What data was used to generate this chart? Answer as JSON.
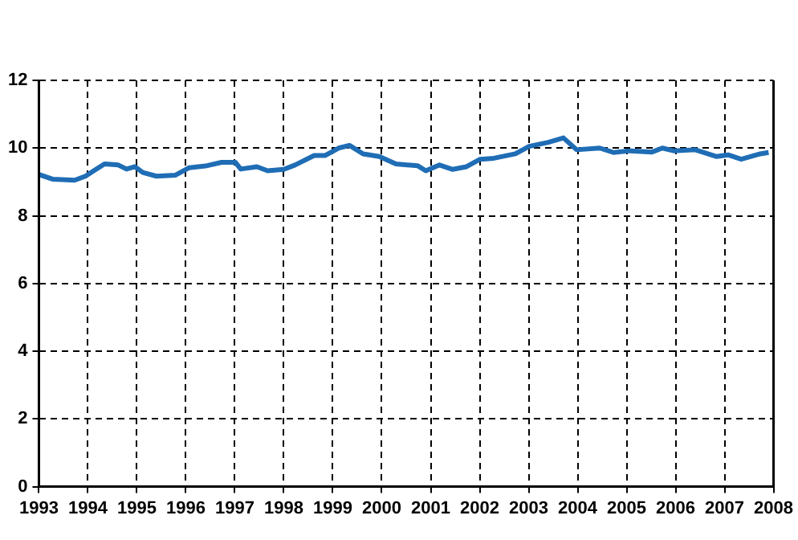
{
  "chart_data": {
    "type": "line",
    "xlim": [
      1993,
      2008
    ],
    "xticks": [
      1993,
      1994,
      1995,
      1996,
      1997,
      1998,
      1999,
      2000,
      2001,
      2002,
      2003,
      2004,
      2005,
      2006,
      2007,
      2008
    ],
    "ylim": [
      0,
      12
    ],
    "yticks": [
      0,
      2,
      4,
      6,
      8,
      10,
      12
    ],
    "grid": true,
    "marker": "none",
    "line_style": "solid",
    "series": [
      {
        "color": "#1f6db5",
        "x": [
          1993.0,
          1993.29,
          1993.73,
          1993.95,
          1994.12,
          1994.34,
          1994.62,
          1994.79,
          1994.96,
          1995.12,
          1995.4,
          1995.79,
          1996.07,
          1996.4,
          1996.73,
          1997.01,
          1997.12,
          1997.45,
          1997.67,
          1998.0,
          1998.23,
          1998.62,
          1998.84,
          1999.12,
          1999.34,
          1999.62,
          1999.95,
          2000.29,
          2000.73,
          2000.9,
          2001.18,
          2001.45,
          2001.73,
          2002.01,
          2002.29,
          2002.73,
          2003.01,
          2003.4,
          2003.71,
          2003.98,
          2004.45,
          2004.73,
          2005.07,
          2005.51,
          2005.73,
          2005.96,
          2006.4,
          2006.84,
          2007.07,
          2007.34,
          2007.73,
          2007.9
        ],
        "values": [
          9.22,
          9.08,
          9.05,
          9.17,
          9.33,
          9.53,
          9.5,
          9.38,
          9.45,
          9.28,
          9.17,
          9.2,
          9.42,
          9.47,
          9.58,
          9.58,
          9.38,
          9.45,
          9.33,
          9.37,
          9.5,
          9.78,
          9.78,
          10.0,
          10.08,
          9.83,
          9.75,
          9.53,
          9.48,
          9.33,
          9.5,
          9.37,
          9.45,
          9.67,
          9.7,
          9.83,
          10.05,
          10.17,
          10.3,
          9.95,
          10.0,
          9.87,
          9.92,
          9.88,
          10.0,
          9.92,
          9.95,
          9.75,
          9.8,
          9.67,
          9.83,
          9.87
        ]
      }
    ]
  }
}
